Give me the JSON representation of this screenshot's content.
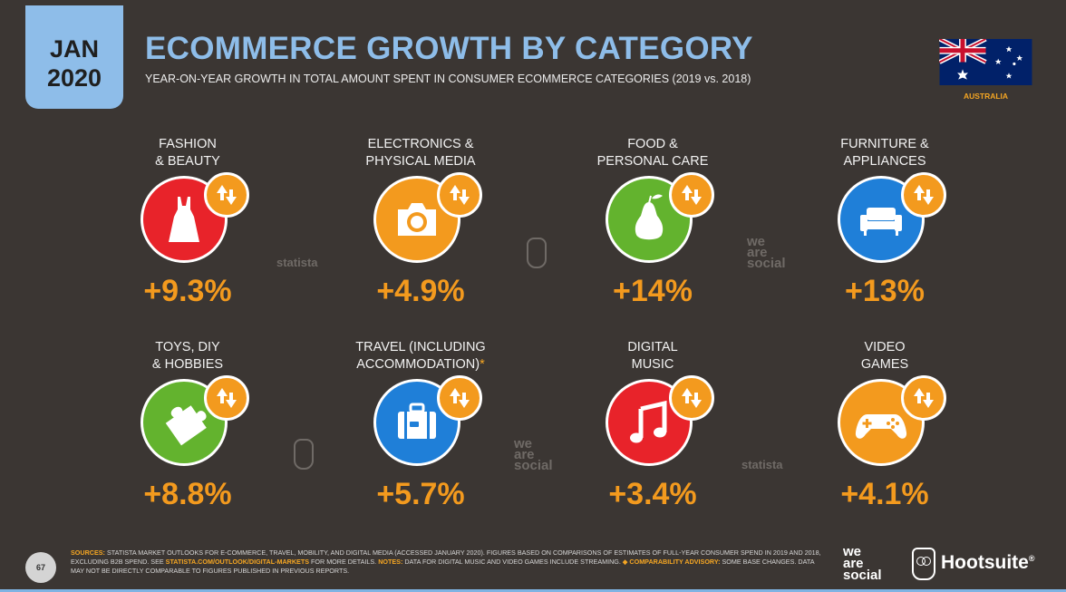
{
  "header": {
    "month": "JAN",
    "year": "2020",
    "title": "ECOMMERCE GROWTH BY CATEGORY",
    "subtitle": "YEAR-ON-YEAR GROWTH IN TOTAL AMOUNT SPENT IN CONSUMER ECOMMERCE CATEGORIES (2019 vs. 2018)",
    "country": "AUSTRALIA"
  },
  "categories": [
    {
      "label": "FASHION\n& BEAUTY",
      "value": "+9.3%",
      "color": "#e8232a",
      "icon": "dress-icon"
    },
    {
      "label": "ELECTRONICS &\nPHYSICAL MEDIA",
      "value": "+4.9%",
      "color": "#f39a1e",
      "icon": "camera-icon"
    },
    {
      "label": "FOOD &\nPERSONAL CARE",
      "value": "+14%",
      "color": "#63b32e",
      "icon": "pear-icon"
    },
    {
      "label": "FURNITURE &\nAPPLIANCES",
      "value": "+13%",
      "color": "#1f7fd8",
      "icon": "sofa-icon"
    },
    {
      "label": "TOYS, DIY\n& HOBBIES",
      "value": "+8.8%",
      "color": "#63b32e",
      "icon": "puzzle-piece-icon"
    },
    {
      "label": "TRAVEL (INCLUDING\nACCOMMODATION)",
      "label_mark": "*",
      "value": "+5.7%",
      "color": "#1f7fd8",
      "icon": "suitcase-icon"
    },
    {
      "label": "DIGITAL\nMUSIC",
      "value": "+3.4%",
      "color": "#e8232a",
      "icon": "music-note-icon"
    },
    {
      "label": "VIDEO\nGAMES",
      "value": "+4.1%",
      "color": "#f39a1e",
      "icon": "gamepad-icon"
    }
  ],
  "watermarks": {
    "statista": "statista",
    "we": "we",
    "are": "are",
    "social": "social"
  },
  "footer": {
    "page_number": "67",
    "sources_label": "SOURCES:",
    "sources_text": " STATISTA MARKET OUTLOOKS FOR E-COMMERCE, TRAVEL, MOBILITY, AND DIGITAL MEDIA (ACCESSED JANUARY 2020). FIGURES BASED ON COMPARISONS OF ESTIMATES OF FULL-YEAR CONSUMER SPEND IN 2019 AND 2018, EXCLUDING B2B SPEND. SEE ",
    "link": "STATISTA.COM/OUTLOOK/DIGITAL-MARKETS",
    "sources_text2": " FOR MORE DETAILS. ",
    "notes_label": "NOTES:",
    "notes_text": " DATA FOR DIGITAL MUSIC AND VIDEO GAMES INCLUDE STREAMING. ",
    "advisory_label": "◆ COMPARABILITY ADVISORY:",
    "advisory_text": " SOME BASE CHANGES. DATA MAY NOT BE DIRECTLY COMPARABLE TO FIGURES PUBLISHED IN PREVIOUS REPORTS.",
    "was_logo": [
      "we",
      "are",
      "social"
    ],
    "hootsuite": "Hootsuite",
    "hootsuite_mark": "®"
  },
  "colors": {
    "background": "#3b3633",
    "accent_blue": "#8ebde9",
    "accent_orange": "#f39a1e"
  }
}
